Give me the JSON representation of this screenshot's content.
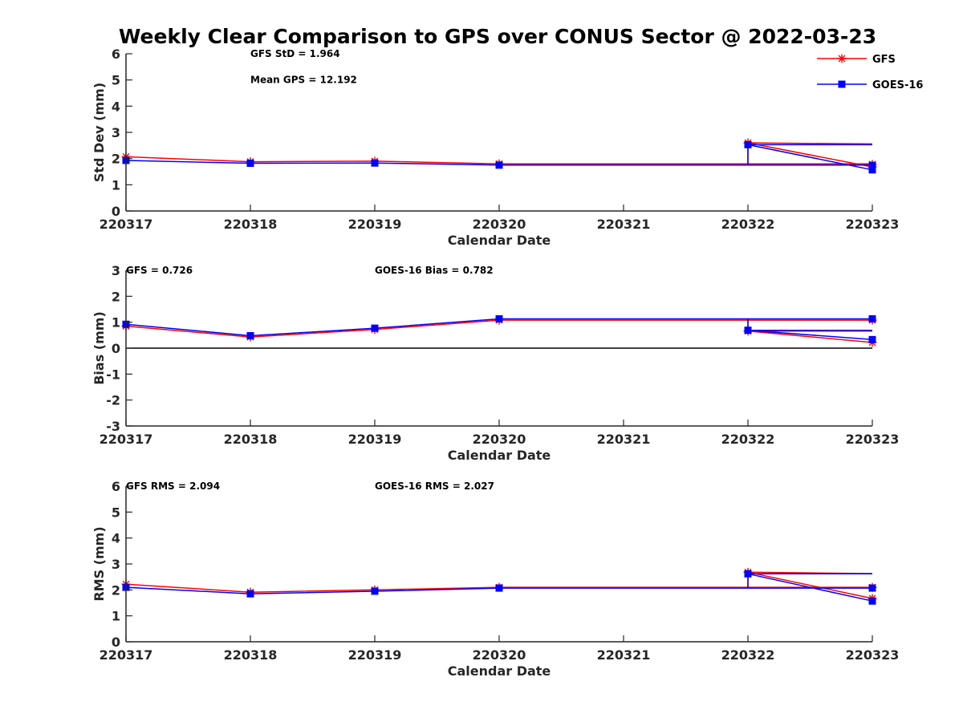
{
  "chart_data": {
    "title": "Weekly Clear Comparison to GPS over CONUS Sector @ 2022-03-23",
    "legend": {
      "placement": "top-right",
      "entries": [
        {
          "name": "GFS",
          "color": "#ff0000",
          "marker": "asterisk"
        },
        {
          "name": "GOES-16",
          "color": "#0000ff",
          "marker": "square"
        }
      ]
    },
    "panels": [
      {
        "type": "line",
        "key": "std",
        "xlabel": "Calendar Date",
        "ylabel": "Std Dev (mm)",
        "ylim": [
          0,
          6
        ],
        "yticks": [
          "0",
          "1",
          "2",
          "3",
          "4",
          "5",
          "6"
        ],
        "categories": [
          "220317",
          "220318",
          "220319",
          "220320",
          "220321",
          "220322",
          "220323"
        ],
        "zero_line": false,
        "annotations": [
          {
            "key": "a",
            "text": "GFS StD = 1.964",
            "anchor": [
              1,
              6
            ]
          },
          {
            "key": "b",
            "text": "Mean GPS = 12.192",
            "anchor": [
              1,
              5
            ]
          }
        ],
        "series": [
          {
            "name": "GFS",
            "color": "#ff0000",
            "marker": "asterisk",
            "points": [
              [
                0,
                2.07
              ],
              [
                1,
                1.88
              ],
              [
                2,
                1.9
              ],
              [
                3,
                1.8
              ],
              [
                6,
                1.78
              ],
              [
                5,
                2.6
              ],
              [
                6,
                1.68
              ]
            ],
            "path": [
              [
                0,
                2.07
              ],
              [
                1,
                1.88
              ],
              [
                2,
                1.9
              ],
              [
                3,
                1.8
              ],
              [
                6,
                1.8
              ],
              [
                5,
                1.8
              ],
              [
                5,
                2.6
              ],
              [
                6,
                2.56
              ],
              [
                5,
                2.6
              ],
              [
                6,
                1.68
              ]
            ]
          },
          {
            "name": "GOES-16",
            "color": "#0000ff",
            "marker": "square",
            "points": [
              [
                0,
                1.93
              ],
              [
                1,
                1.82
              ],
              [
                2,
                1.83
              ],
              [
                3,
                1.75
              ],
              [
                6,
                1.74
              ],
              [
                5,
                2.53
              ],
              [
                6,
                1.57
              ]
            ],
            "path": [
              [
                0,
                1.93
              ],
              [
                1,
                1.82
              ],
              [
                2,
                1.83
              ],
              [
                3,
                1.75
              ],
              [
                6,
                1.75
              ],
              [
                5,
                1.75
              ],
              [
                5,
                2.53
              ],
              [
                6,
                2.53
              ],
              [
                5,
                2.53
              ],
              [
                6,
                1.57
              ]
            ]
          }
        ]
      },
      {
        "type": "line",
        "key": "bias",
        "xlabel": "Calendar Date",
        "ylabel": "Bias (mm)",
        "ylim": [
          -3,
          3
        ],
        "yticks": [
          "-3",
          "-2",
          "-1",
          "0",
          "1",
          "2",
          "3"
        ],
        "categories": [
          "220317",
          "220318",
          "220319",
          "220320",
          "220321",
          "220322",
          "220323"
        ],
        "zero_line": true,
        "annotations": [
          {
            "key": "a",
            "text": "GFS = 0.726",
            "anchor": [
              0,
              3
            ]
          },
          {
            "key": "b",
            "text": "GOES-16 Bias  = 0.782",
            "anchor": [
              2,
              3
            ]
          }
        ],
        "series": [
          {
            "name": "GFS",
            "color": "#ff0000",
            "marker": "asterisk",
            "points": [
              [
                0,
                0.85
              ],
              [
                1,
                0.43
              ],
              [
                2,
                0.72
              ],
              [
                3,
                1.08
              ],
              [
                6,
                1.08
              ],
              [
                5,
                0.66
              ],
              [
                6,
                0.22
              ]
            ],
            "path": [
              [
                0,
                0.85
              ],
              [
                1,
                0.43
              ],
              [
                2,
                0.72
              ],
              [
                3,
                1.08
              ],
              [
                6,
                1.08
              ],
              [
                5,
                1.08
              ],
              [
                5,
                0.66
              ],
              [
                6,
                0.66
              ],
              [
                5,
                0.66
              ],
              [
                6,
                0.22
              ]
            ]
          },
          {
            "name": "GOES-16",
            "color": "#0000ff",
            "marker": "square",
            "points": [
              [
                0,
                0.92
              ],
              [
                1,
                0.48
              ],
              [
                2,
                0.77
              ],
              [
                3,
                1.13
              ],
              [
                6,
                1.13
              ],
              [
                5,
                0.69
              ],
              [
                6,
                0.33
              ]
            ],
            "path": [
              [
                0,
                0.92
              ],
              [
                1,
                0.48
              ],
              [
                2,
                0.77
              ],
              [
                3,
                1.13
              ],
              [
                6,
                1.13
              ],
              [
                5,
                1.13
              ],
              [
                5,
                0.69
              ],
              [
                6,
                0.69
              ],
              [
                5,
                0.69
              ],
              [
                6,
                0.33
              ]
            ]
          }
        ]
      },
      {
        "type": "line",
        "key": "rms",
        "xlabel": "Calendar Date",
        "ylabel": "RMS (mm)",
        "ylim": [
          0,
          6
        ],
        "yticks": [
          "0",
          "1",
          "2",
          "3",
          "4",
          "5",
          "6"
        ],
        "categories": [
          "220317",
          "220318",
          "220319",
          "220320",
          "220321",
          "220322",
          "220323"
        ],
        "zero_line": false,
        "annotations": [
          {
            "key": "a",
            "text": "GFS RMS = 2.094",
            "anchor": [
              0,
              6
            ]
          },
          {
            "key": "b",
            "text": "GOES-16 RMS = 2.027",
            "anchor": [
              2,
              6
            ]
          }
        ],
        "series": [
          {
            "name": "GFS",
            "color": "#ff0000",
            "marker": "asterisk",
            "points": [
              [
                0,
                2.22
              ],
              [
                1,
                1.91
              ],
              [
                2,
                2.0
              ],
              [
                3,
                2.1
              ],
              [
                6,
                2.1
              ],
              [
                5,
                2.68
              ],
              [
                6,
                1.67
              ]
            ],
            "path": [
              [
                0,
                2.22
              ],
              [
                1,
                1.91
              ],
              [
                2,
                2.0
              ],
              [
                3,
                2.1
              ],
              [
                6,
                2.1
              ],
              [
                5,
                2.1
              ],
              [
                5,
                2.68
              ],
              [
                6,
                2.63
              ],
              [
                5,
                2.68
              ],
              [
                6,
                1.67
              ]
            ]
          },
          {
            "name": "GOES-16",
            "color": "#0000ff",
            "marker": "square",
            "points": [
              [
                0,
                2.1
              ],
              [
                1,
                1.85
              ],
              [
                2,
                1.95
              ],
              [
                3,
                2.07
              ],
              [
                6,
                2.07
              ],
              [
                5,
                2.62
              ],
              [
                6,
                1.57
              ]
            ],
            "path": [
              [
                0,
                2.1
              ],
              [
                1,
                1.85
              ],
              [
                2,
                1.95
              ],
              [
                3,
                2.07
              ],
              [
                6,
                2.07
              ],
              [
                5,
                2.07
              ],
              [
                5,
                2.62
              ],
              [
                6,
                2.62
              ],
              [
                5,
                2.62
              ],
              [
                6,
                1.57
              ]
            ]
          }
        ]
      }
    ]
  }
}
